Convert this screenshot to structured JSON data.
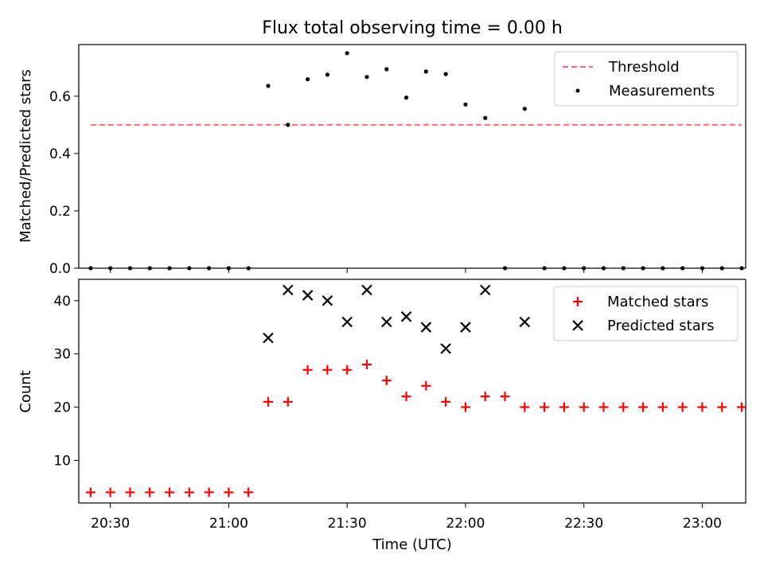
{
  "chart_data": [
    {
      "type": "scatter",
      "title": "Flux total observing time = 0.00 h",
      "xlabel": "",
      "ylabel": "Matched/Predicted stars",
      "ylim": [
        0,
        0.78
      ],
      "yticks": [
        "0.0",
        "0.2",
        "0.4",
        "0.6"
      ],
      "ytick_values": [
        0,
        0.2,
        0.4,
        0.6
      ],
      "legend_position": "top-right",
      "threshold": {
        "name": "Threshold",
        "value": 0.5,
        "x_start": "20:25",
        "x_end": "23:10",
        "color": "#ff6b6b"
      },
      "series": [
        {
          "name": "Measurements",
          "color": "#000000",
          "marker": "dot",
          "points": [
            [
              "20:25",
              0
            ],
            [
              "20:30",
              0
            ],
            [
              "20:35",
              0
            ],
            [
              "20:40",
              0
            ],
            [
              "20:45",
              0
            ],
            [
              "20:50",
              0
            ],
            [
              "20:55",
              0
            ],
            [
              "21:00",
              0
            ],
            [
              "21:05",
              0
            ],
            [
              "21:10",
              0.636
            ],
            [
              "21:15",
              0.5
            ],
            [
              "21:20",
              0.659
            ],
            [
              "21:25",
              0.675
            ],
            [
              "21:30",
              0.75
            ],
            [
              "21:35",
              0.667
            ],
            [
              "21:40",
              0.694
            ],
            [
              "21:45",
              0.595
            ],
            [
              "21:50",
              0.686
            ],
            [
              "21:55",
              0.677
            ],
            [
              "22:00",
              0.571
            ],
            [
              "22:05",
              0.524
            ],
            [
              "22:10",
              0
            ],
            [
              "22:15",
              0.556
            ],
            [
              "22:20",
              0
            ],
            [
              "22:25",
              0
            ],
            [
              "22:30",
              0
            ],
            [
              "22:35",
              0
            ],
            [
              "22:40",
              0
            ],
            [
              "22:45",
              0
            ],
            [
              "22:50",
              0
            ],
            [
              "22:55",
              0
            ],
            [
              "23:00",
              0
            ],
            [
              "23:05",
              0
            ],
            [
              "23:10",
              0
            ]
          ]
        }
      ]
    },
    {
      "type": "scatter",
      "title": "",
      "xlabel": "Time (UTC)",
      "ylabel": "Count",
      "ylim": [
        2,
        44
      ],
      "xlim": [
        "20:22",
        "23:11"
      ],
      "yticks": [
        "10",
        "20",
        "30",
        "40"
      ],
      "ytick_values": [
        10,
        20,
        30,
        40
      ],
      "xticks": [
        "20:30",
        "21:00",
        "21:30",
        "22:00",
        "22:30",
        "23:00"
      ],
      "legend_position": "top-right",
      "series": [
        {
          "name": "Matched stars",
          "color": "#ff0000",
          "marker": "plus",
          "points": [
            [
              "20:25",
              4
            ],
            [
              "20:30",
              4
            ],
            [
              "20:35",
              4
            ],
            [
              "20:40",
              4
            ],
            [
              "20:45",
              4
            ],
            [
              "20:50",
              4
            ],
            [
              "20:55",
              4
            ],
            [
              "21:00",
              4
            ],
            [
              "21:05",
              4
            ],
            [
              "21:10",
              21
            ],
            [
              "21:15",
              21
            ],
            [
              "21:20",
              27
            ],
            [
              "21:25",
              27
            ],
            [
              "21:30",
              27
            ],
            [
              "21:35",
              28
            ],
            [
              "21:40",
              25
            ],
            [
              "21:45",
              22
            ],
            [
              "21:50",
              24
            ],
            [
              "21:55",
              21
            ],
            [
              "22:00",
              20
            ],
            [
              "22:05",
              22
            ],
            [
              "22:10",
              22
            ],
            [
              "22:15",
              20
            ],
            [
              "22:20",
              20
            ],
            [
              "22:25",
              20
            ],
            [
              "22:30",
              20
            ],
            [
              "22:35",
              20
            ],
            [
              "22:40",
              20
            ],
            [
              "22:45",
              20
            ],
            [
              "22:50",
              20
            ],
            [
              "22:55",
              20
            ],
            [
              "23:00",
              20
            ],
            [
              "23:05",
              20
            ],
            [
              "23:10",
              20
            ]
          ]
        },
        {
          "name": "Predicted stars",
          "color": "#000000",
          "marker": "x",
          "points": [
            [
              "21:10",
              33
            ],
            [
              "21:15",
              42
            ],
            [
              "21:20",
              41
            ],
            [
              "21:25",
              40
            ],
            [
              "21:30",
              36
            ],
            [
              "21:35",
              42
            ],
            [
              "21:40",
              36
            ],
            [
              "21:45",
              37
            ],
            [
              "21:50",
              35
            ],
            [
              "21:55",
              31
            ],
            [
              "22:00",
              35
            ],
            [
              "22:05",
              42
            ],
            [
              "22:15",
              36
            ]
          ]
        }
      ]
    }
  ]
}
